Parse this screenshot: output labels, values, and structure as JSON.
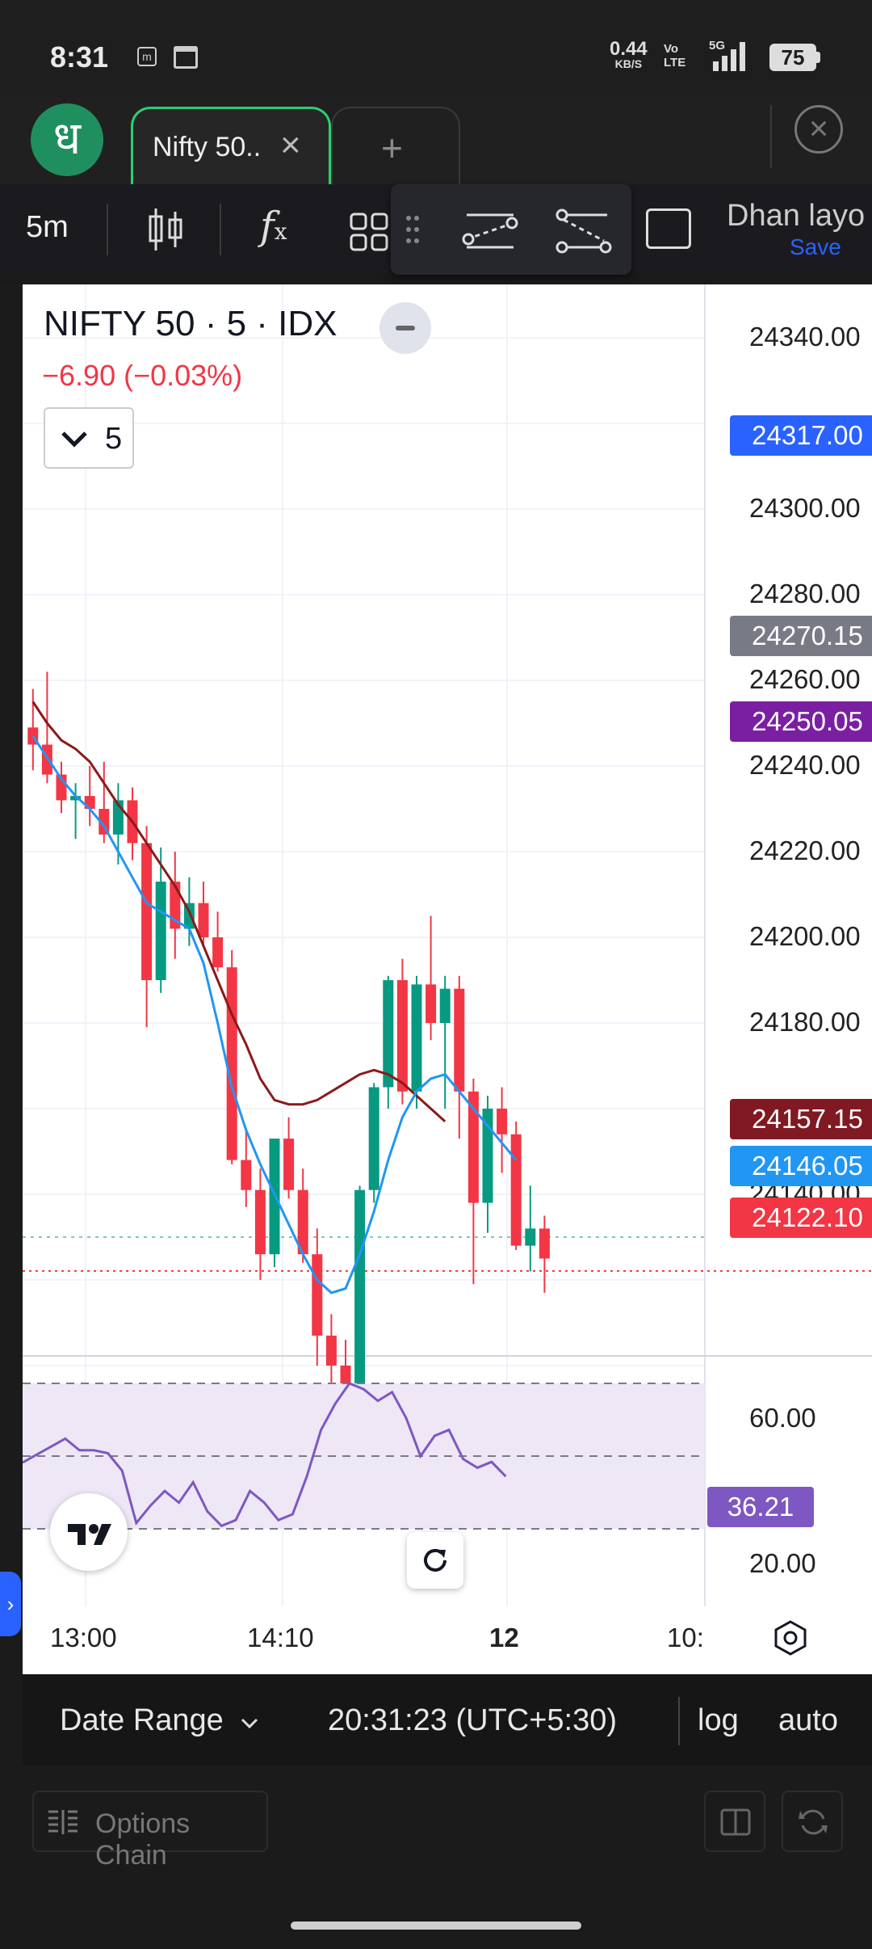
{
  "status": {
    "time": "8:31",
    "net_speed_top": "0.44",
    "net_speed_unit": "KB/S",
    "volte": "Vo LTE",
    "network": "5G",
    "battery": "75"
  },
  "tabs": {
    "logo_glyph": "ध",
    "active_tab": "Nifty 50..",
    "close": "×",
    "add": "+"
  },
  "toolbar": {
    "interval": "5m",
    "layout_name": "Dhan layo",
    "save_label": "Save"
  },
  "chart": {
    "title": "NIFTY 50 · 5 · IDX",
    "change": "−6.90 (−0.03%)",
    "panel_count": "5",
    "price_axis": [
      "24340.00",
      "24300.00",
      "24280.00",
      "24260.00",
      "24240.00",
      "24220.00",
      "24200.00",
      "24180.00",
      "24140.00"
    ],
    "badges": {
      "b1": "24317.00",
      "b2": "24270.15",
      "b3": "24250.05",
      "b4": "24157.15",
      "b5": "24146.05",
      "b6": "24122.10"
    },
    "rsi_axis": [
      "60.00",
      "20.00"
    ],
    "rsi_badge": "36.21",
    "time_axis": [
      "13:00",
      "14:10",
      "12",
      "10:"
    ]
  },
  "colors": {
    "up": "#089981",
    "down": "#f23645",
    "ema_fast": "#2196f3",
    "ema_slow": "#8b1a1a",
    "rsi": "#7e57c2",
    "badge_blue": "#2962ff",
    "badge_grey": "#787b86",
    "badge_purple": "#7b1fa2",
    "badge_maroon": "#801922",
    "badge_lightblue": "#2196f3",
    "badge_red": "#f23645"
  },
  "bottom": {
    "date_range": "Date Range",
    "clock": "20:31:23 (UTC+5:30)",
    "log": "log",
    "auto": "auto"
  },
  "footer": {
    "options_chain": "Options Chain"
  },
  "candles": [
    [
      24249,
      24258,
      24239,
      24245
    ],
    [
      24245,
      24262,
      24236,
      24238
    ],
    [
      24238,
      24241,
      24229,
      24232
    ],
    [
      24232,
      24236,
      24223,
      24233
    ],
    [
      24233,
      24240,
      24226,
      24230
    ],
    [
      24230,
      24241,
      24222,
      24224
    ],
    [
      24224,
      24236,
      24217,
      24232
    ],
    [
      24232,
      24235,
      24218,
      24222
    ],
    [
      24222,
      24226,
      24179,
      24190
    ],
    [
      24190,
      24221,
      24187,
      24213
    ],
    [
      24213,
      24220,
      24195,
      24202
    ],
    [
      24202,
      24214,
      24198,
      24208
    ],
    [
      24208,
      24213,
      24198,
      24200
    ],
    [
      24200,
      24206,
      24192,
      24193
    ],
    [
      24193,
      24197,
      24147,
      24148
    ],
    [
      24148,
      24155,
      24137,
      24141
    ],
    [
      24141,
      24146,
      24120,
      24126
    ],
    [
      24126,
      24152,
      24123,
      24153
    ],
    [
      24153,
      24158,
      24139,
      24141
    ],
    [
      24141,
      24146,
      24124,
      24126
    ],
    [
      24126,
      24132,
      24100,
      24107
    ],
    [
      24107,
      24112,
      24094,
      24100
    ],
    [
      24100,
      24106,
      24092,
      24095
    ],
    [
      24095,
      24142,
      24093,
      24141
    ],
    [
      24141,
      24166,
      24138,
      24165
    ],
    [
      24165,
      24191,
      24160,
      24190
    ],
    [
      24190,
      24195,
      24161,
      24164
    ],
    [
      24164,
      24191,
      24160,
      24189
    ],
    [
      24189,
      24205,
      24176,
      24180
    ],
    [
      24180,
      24191,
      24160,
      24188
    ],
    [
      24188,
      24191,
      24153,
      24164
    ],
    [
      24164,
      24167,
      24119,
      24138
    ],
    [
      24138,
      24163,
      24131,
      24160
    ],
    [
      24160,
      24165,
      24145,
      24154
    ],
    [
      24154,
      24157,
      24127,
      24128
    ],
    [
      24128,
      24142,
      24122,
      24132
    ],
    [
      24132,
      24135,
      24117,
      24125
    ]
  ],
  "ema_fast": [
    24247,
    24242,
    24237,
    24233,
    24230,
    24226,
    24220,
    24214,
    24208,
    24206,
    24204,
    24202,
    24194,
    24180,
    24165,
    24155,
    24147,
    24140,
    24133,
    24126,
    24120,
    24117,
    24118,
    24126,
    24136,
    24148,
    24158,
    24164,
    24167,
    24168,
    24164,
    24160,
    24156,
    24152,
    24148
  ],
  "ema_slow": [
    24255,
    24250,
    24246,
    24244,
    24241,
    24236,
    24231,
    24227,
    24222,
    24217,
    24212,
    24206,
    24198,
    24190,
    24182,
    24175,
    24167,
    24162,
    24161,
    24161,
    24162,
    24164,
    24166,
    24168,
    24169,
    24168,
    24166,
    24163,
    24160,
    24157
  ],
  "rsi": [
    51,
    47,
    47,
    46,
    40,
    22,
    28,
    33,
    29,
    36,
    26,
    21,
    23,
    33,
    29,
    23,
    25,
    38,
    54,
    63,
    70,
    68,
    64,
    67,
    58,
    45,
    52,
    54,
    44,
    41,
    43,
    38
  ]
}
